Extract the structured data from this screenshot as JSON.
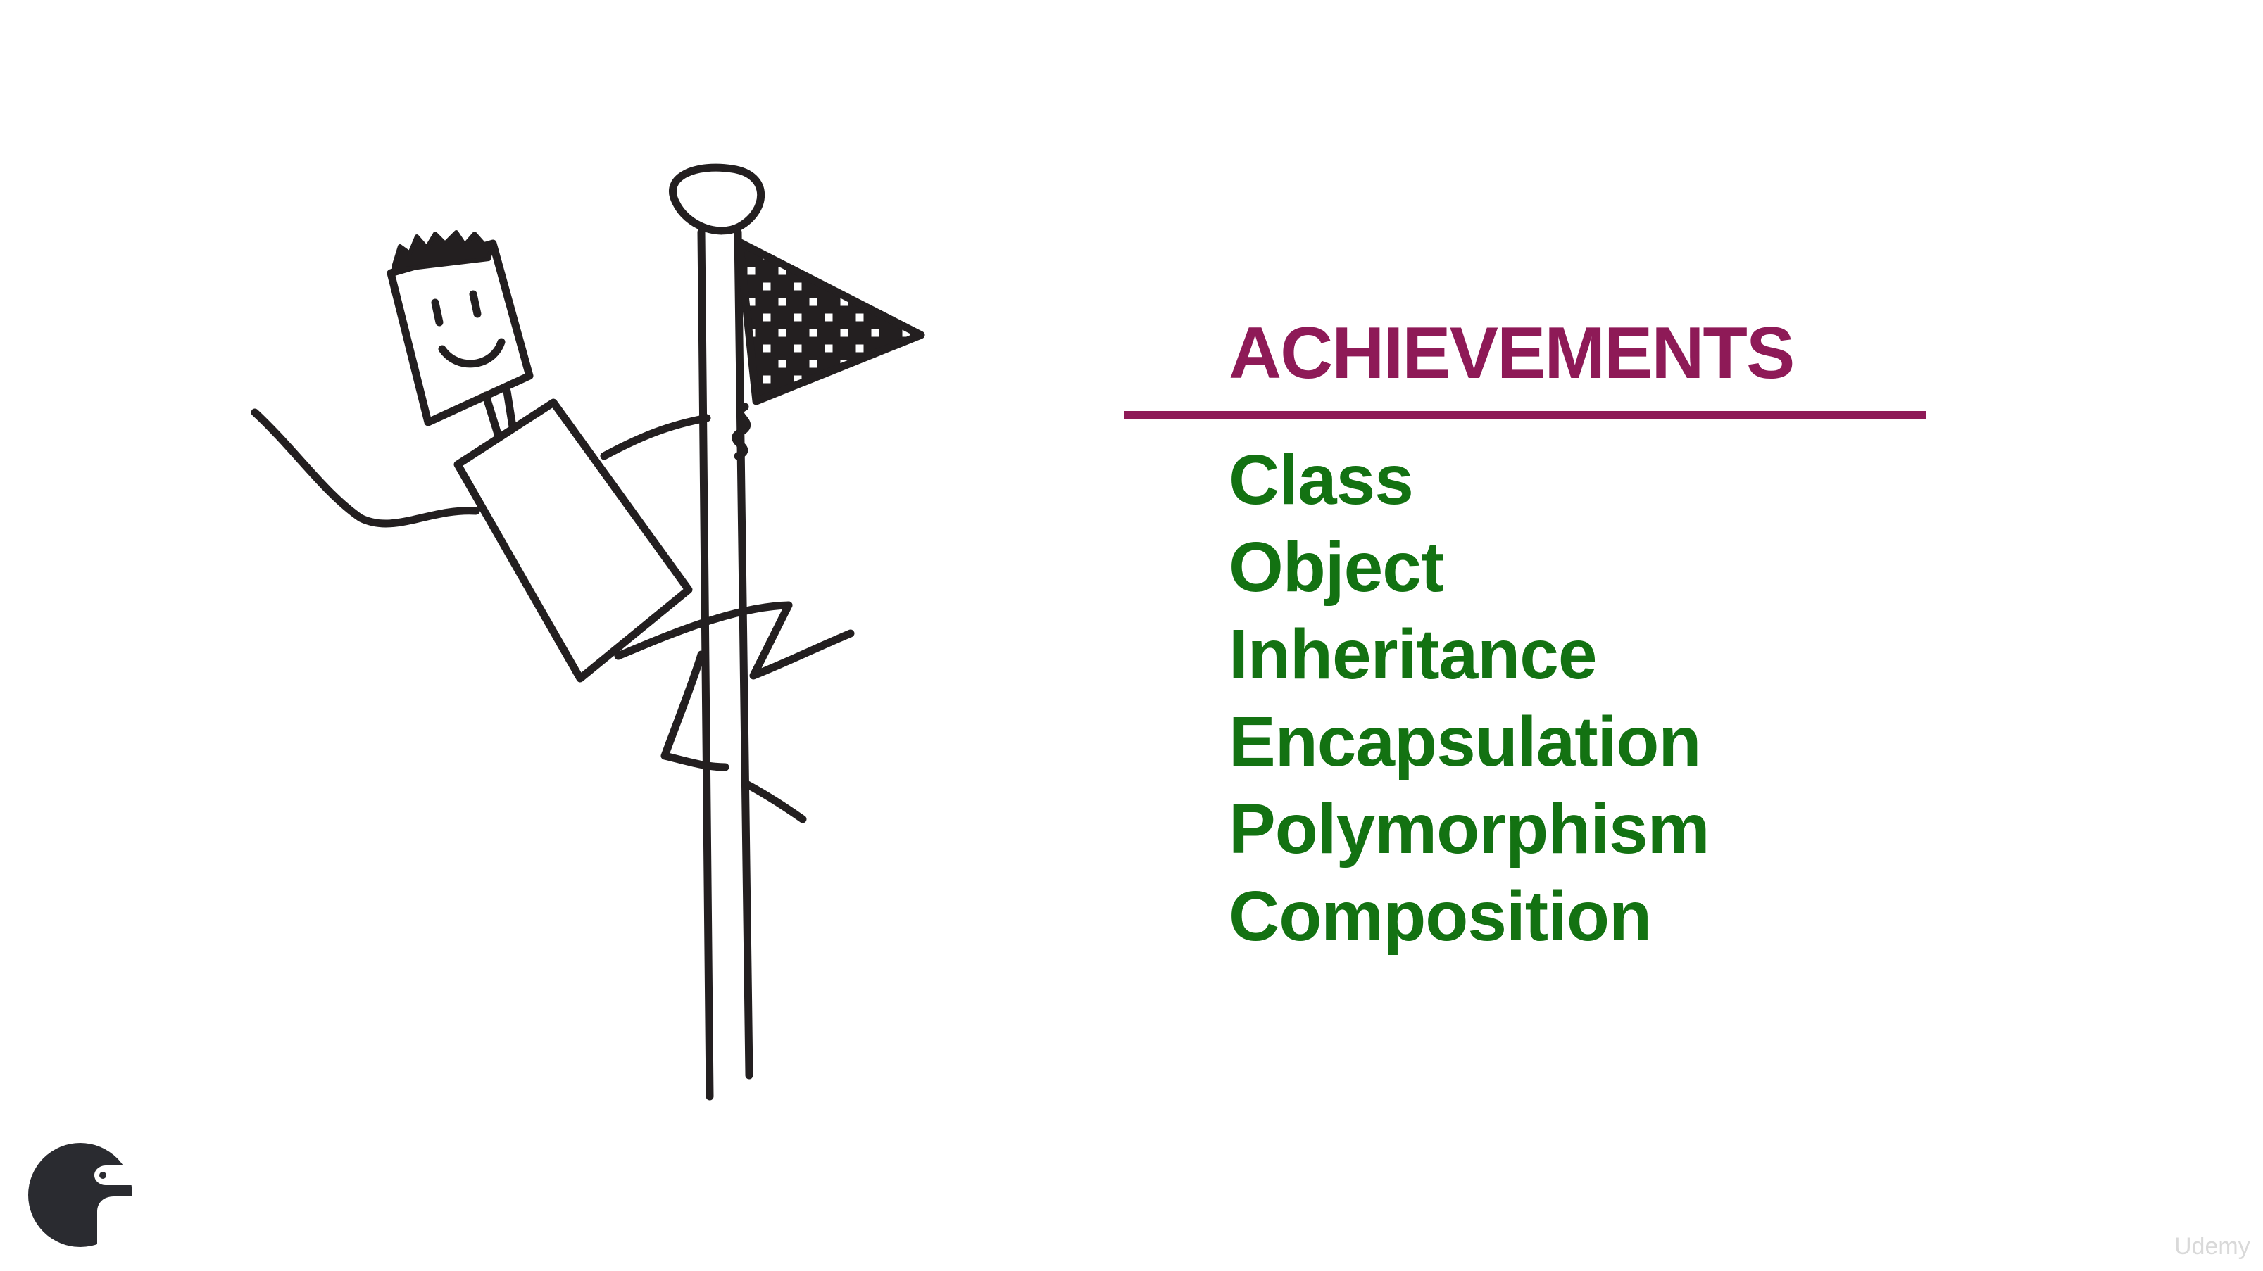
{
  "slide": {
    "title": "ACHIEVEMENTS",
    "items": [
      "Class",
      "Object",
      "Inheritance",
      "Encapsulation",
      "Polymorphism",
      "Composition"
    ]
  },
  "watermark": "Udemy",
  "colors": {
    "title": "#8e1a57",
    "items": "#137212",
    "ink": "#231f20",
    "background": "#ffffff"
  },
  "icons": {
    "illustration": "stick-figure-climbing-pole-icon",
    "logo": "bird-logo-icon"
  }
}
